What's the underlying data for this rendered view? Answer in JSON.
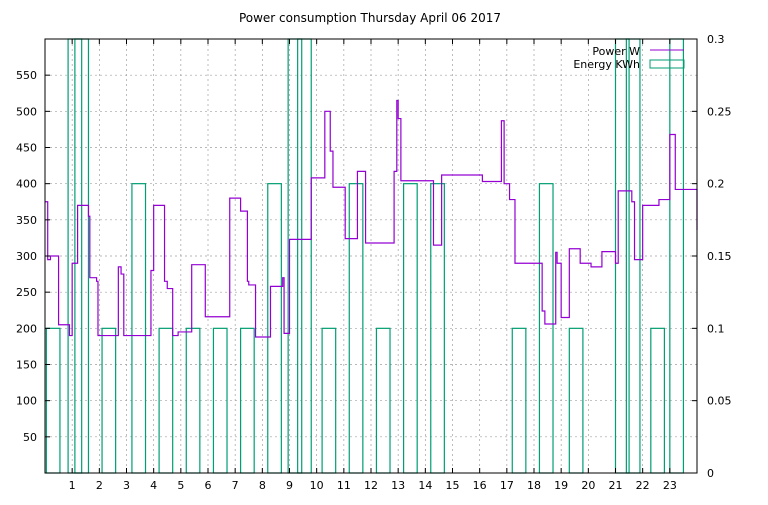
{
  "chart_data": {
    "type": "line",
    "title": "Power consumption Thursday April 06 2017",
    "xlabel": "",
    "ylabel": "",
    "xlim": [
      0,
      24
    ],
    "ylim": [
      0,
      600
    ],
    "y2lim": [
      0,
      0.3
    ],
    "grid": true,
    "legend_position": "top-right",
    "x_ticks": [
      "1",
      "2",
      "3",
      "4",
      "5",
      "6",
      "7",
      "8",
      "9",
      "10",
      "11",
      "12",
      "13",
      "14",
      "15",
      "16",
      "17",
      "18",
      "19",
      "20",
      "21",
      "22",
      "23"
    ],
    "y_ticks": [
      "50",
      "100",
      "150",
      "200",
      "250",
      "300",
      "350",
      "400",
      "450",
      "500",
      "550"
    ],
    "y2_ticks": [
      "0",
      "0.05",
      "0.1",
      "0.15",
      "0.2",
      "0.25",
      "0.3"
    ],
    "colors": {
      "power": "#9400d3",
      "energy": "#009e73",
      "grid": "#a0a0a0"
    },
    "series": [
      {
        "name": "Power W",
        "axis": "y",
        "style": "step-line",
        "x": [
          0,
          0.1,
          0.2,
          0.5,
          0.9,
          1.0,
          1.2,
          1.6,
          1.65,
          1.9,
          1.95,
          2.7,
          2.8,
          2.9,
          3.05,
          3.9,
          4.0,
          4.1,
          4.4,
          4.5,
          4.7,
          4.9,
          5.4,
          5.9,
          6.0,
          6.8,
          7.2,
          7.45,
          7.5,
          7.75,
          7.8,
          8.3,
          8.75,
          8.8,
          9.0,
          9.7,
          9.8,
          10.3,
          10.5,
          10.6,
          11.05,
          11.5,
          11.8,
          12.6,
          12.85,
          12.95,
          13.0,
          13.1,
          13.6,
          14.3,
          14.6,
          16.1,
          16.8,
          16.9,
          17.1,
          17.3,
          18.3,
          18.4,
          18.8,
          18.85,
          19.0,
          19.3,
          19.7,
          20.1,
          20.5,
          20.9,
          21.0,
          21.1,
          21.6,
          21.7,
          22.0,
          22.4,
          22.6,
          23.0,
          23.2,
          24.0
        ],
        "values": [
          375,
          295,
          300,
          205,
          190,
          290,
          370,
          355,
          270,
          265,
          190,
          285,
          275,
          190,
          190,
          280,
          370,
          370,
          265,
          255,
          190,
          195,
          288,
          216,
          216,
          380,
          362,
          265,
          260,
          188,
          188,
          258,
          270,
          193,
          323,
          323,
          408,
          500,
          445,
          395,
          324,
          417,
          318,
          318,
          417,
          515,
          490,
          404,
          404,
          315,
          412,
          403,
          487,
          400,
          378,
          290,
          224,
          206,
          305,
          290,
          215,
          310,
          290,
          285,
          306,
          306,
          290,
          390,
          375,
          295,
          370,
          370,
          378,
          468,
          392,
          336
        ]
      },
      {
        "name": "Energy KWh",
        "axis": "y2",
        "style": "impulse-boxes",
        "x": [
          0.05,
          0.85,
          1.1,
          2.1,
          3.2,
          4.2,
          5.2,
          6.2,
          7.2,
          8.2,
          8.95,
          9.3,
          10.2,
          11.2,
          12.2,
          13.2,
          14.2,
          15.2,
          16.3,
          17.2,
          18.2,
          19.3,
          20.3,
          21.0,
          21.4,
          22.3,
          23.0
        ],
        "values": [
          0.1,
          0.3,
          0.3,
          0.1,
          0.2,
          0.1,
          0.1,
          0.1,
          0.1,
          0.2,
          0.3,
          0.3,
          0.1,
          0.2,
          0.1,
          0.2,
          0.2,
          0.0,
          0.0,
          0.1,
          0.2,
          0.1,
          0.0,
          0.3,
          0.3,
          0.1,
          0.3
        ]
      }
    ]
  }
}
